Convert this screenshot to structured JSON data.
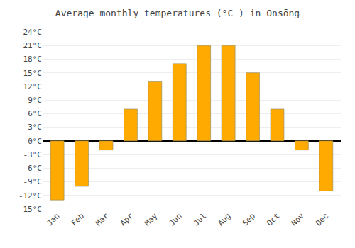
{
  "chart_data": {
    "type": "bar",
    "title": "Average monthly temperatures (°C ) in Onsōng",
    "categories": [
      "Jan",
      "Feb",
      "Mar",
      "Apr",
      "May",
      "Jun",
      "Jul",
      "Aug",
      "Sep",
      "Oct",
      "Nov",
      "Dec"
    ],
    "values": [
      -13,
      -10,
      -2,
      7,
      13,
      17,
      21,
      21,
      15,
      7,
      -2,
      -11
    ],
    "color": "#FFAA00",
    "ylim": [
      -15,
      24
    ],
    "yticks": [
      {
        "value": -15,
        "label": "-15°C"
      },
      {
        "value": -12,
        "label": "-12°C"
      },
      {
        "value": -9,
        "label": "-9°C"
      },
      {
        "value": -6,
        "label": "-6°C"
      },
      {
        "value": -3,
        "label": "-3°C"
      },
      {
        "value": 0,
        "label": "0°C"
      },
      {
        "value": 3,
        "label": "3°C"
      },
      {
        "value": 6,
        "label": "6°C"
      },
      {
        "value": 9,
        "label": "9°C"
      },
      {
        "value": 12,
        "label": "12°C"
      },
      {
        "value": 15,
        "label": "15°C"
      },
      {
        "value": 18,
        "label": "18°C"
      },
      {
        "value": 21,
        "label": "21°C"
      },
      {
        "value": 24,
        "label": "24°C"
      }
    ],
    "grid": true
  }
}
